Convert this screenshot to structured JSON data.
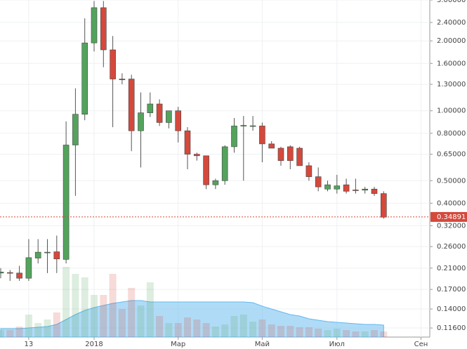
{
  "chart_data": {
    "type": "candlestick",
    "categories": [
      null,
      null,
      null,
      "13",
      null,
      null,
      null,
      null,
      null,
      null,
      "2018",
      null,
      null,
      null,
      null,
      null,
      null,
      null,
      null,
      "Мар",
      null,
      null,
      null,
      null,
      null,
      null,
      null,
      null,
      "Май",
      null,
      null,
      null,
      null,
      null,
      null,
      null,
      "Июл",
      null,
      null,
      null,
      null,
      null,
      null,
      null,
      null,
      "Сен"
    ],
    "open": [
      0.2,
      0.201,
      0.2,
      0.19,
      0.232,
      0.245,
      0.247,
      0.229,
      0.712,
      0.966,
      1.96,
      2.78,
      1.83,
      1.37,
      1.37,
      0.82,
      0.98,
      1.07,
      0.89,
      1.0,
      0.82,
      0.65,
      0.64,
      0.48,
      0.5,
      0.7,
      0.86,
      0.86,
      0.86,
      0.72,
      0.69,
      0.7,
      0.69,
      0.58,
      0.52,
      0.46,
      0.46,
      0.48,
      0.456,
      0.455,
      0.46,
      0.44,
      null,
      null,
      null,
      null
    ],
    "high": [
      0.21,
      0.206,
      0.215,
      0.28,
      0.28,
      0.28,
      0.29,
      0.9,
      1.25,
      2.5,
      2.97,
      2.97,
      2.1,
      1.45,
      1.43,
      1.2,
      1.2,
      1.12,
      1.0,
      1.04,
      0.85,
      0.66,
      0.64,
      0.51,
      0.71,
      0.93,
      0.95,
      0.95,
      0.89,
      0.74,
      0.7,
      0.71,
      0.7,
      0.6,
      0.57,
      0.5,
      0.53,
      0.51,
      0.51,
      0.47,
      0.47,
      0.45,
      null,
      null,
      null,
      null
    ],
    "low": [
      0.19,
      0.185,
      0.185,
      0.185,
      0.22,
      0.2,
      0.2,
      0.22,
      0.43,
      0.91,
      1.8,
      1.54,
      0.85,
      1.3,
      0.67,
      0.57,
      0.94,
      0.86,
      0.84,
      0.73,
      0.56,
      0.61,
      0.46,
      0.46,
      0.48,
      0.66,
      0.5,
      0.82,
      0.6,
      0.69,
      0.58,
      0.56,
      0.58,
      0.5,
      0.45,
      0.45,
      0.44,
      0.44,
      0.44,
      0.44,
      0.43,
      0.343,
      null,
      null,
      null,
      null
    ],
    "close": [
      0.202,
      0.2,
      0.19,
      0.233,
      0.246,
      0.246,
      0.23,
      0.712,
      0.966,
      1.96,
      2.78,
      1.83,
      1.37,
      1.36,
      0.82,
      0.98,
      1.07,
      0.89,
      1.0,
      0.82,
      0.65,
      0.64,
      0.48,
      0.5,
      0.7,
      0.86,
      0.865,
      0.862,
      0.72,
      0.69,
      0.61,
      0.61,
      0.58,
      0.52,
      0.47,
      0.48,
      0.475,
      0.45,
      0.455,
      0.46,
      0.44,
      0.348,
      null,
      null,
      null,
      null
    ],
    "volume": [
      10,
      10,
      15,
      32,
      20,
      25,
      35,
      100,
      90,
      85,
      60,
      60,
      90,
      40,
      70,
      45,
      78,
      30,
      20,
      20,
      28,
      25,
      20,
      15,
      18,
      30,
      32,
      22,
      25,
      18,
      16,
      16,
      14,
      14,
      12,
      10,
      12,
      10,
      8,
      8,
      10,
      8,
      null,
      null,
      null,
      null
    ],
    "volume_ma": [
      12,
      12,
      12,
      13,
      14,
      15,
      18,
      25,
      32,
      38,
      42,
      45,
      48,
      50,
      52,
      52,
      50,
      50,
      50,
      50,
      50,
      50,
      50,
      50,
      50,
      50,
      50,
      49,
      44,
      40,
      36,
      32,
      30,
      26,
      24,
      22,
      21,
      20,
      19,
      18,
      18,
      17,
      null,
      null,
      null,
      null
    ],
    "up_color": "#53a35d",
    "down_color": "#d4493c",
    "volume_ma_color": "#62b8ef",
    "log_scale": true,
    "grid": true,
    "ylim": [
      0.106,
      3.0
    ],
    "yticks": [
      {
        "value": 3.0,
        "label": "3.00000"
      },
      {
        "value": 2.4,
        "label": "2.40000"
      },
      {
        "value": 2.0,
        "label": "2.00000"
      },
      {
        "value": 1.6,
        "label": "1.60000"
      },
      {
        "value": 1.3,
        "label": "1.30000"
      },
      {
        "value": 1.0,
        "label": "1.00000"
      },
      {
        "value": 0.8,
        "label": "0.80000"
      },
      {
        "value": 0.65,
        "label": "0.65000"
      },
      {
        "value": 0.5,
        "label": "0.50000"
      },
      {
        "value": 0.4,
        "label": "0.40000"
      },
      {
        "value": 0.32,
        "label": "0.32000"
      },
      {
        "value": 0.26,
        "label": "0.26000"
      },
      {
        "value": 0.21,
        "label": "0.21000"
      },
      {
        "value": 0.17,
        "label": "0.17000"
      },
      {
        "value": 0.14,
        "label": "0.14000"
      },
      {
        "value": 0.116,
        "label": "0.11600"
      }
    ],
    "current_price": {
      "value": 0.34891,
      "label": "0.34891"
    }
  }
}
